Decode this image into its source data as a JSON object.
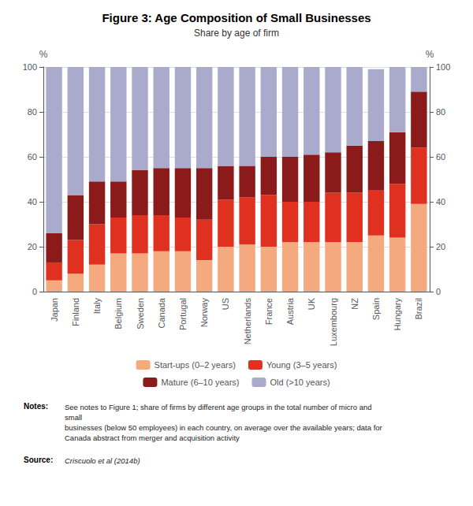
{
  "chart_data": {
    "type": "bar",
    "title": "Figure 3: Age Composition of Small Businesses",
    "subtitle": "Share by age of firm",
    "ylabel": "%",
    "y2label": "%",
    "categories": [
      "Japan",
      "Finland",
      "Italy",
      "Belgium",
      "Sweden",
      "Canada",
      "Portugal",
      "Norway",
      "US",
      "Netherlands",
      "France",
      "Austria",
      "UK",
      "Luxembourg",
      "NZ",
      "Spain",
      "Hungary",
      "Brazil"
    ],
    "series": [
      {
        "name": "Start-ups (0–2 years)",
        "color": "#F4A97F",
        "values": [
          5,
          8,
          12,
          17,
          17,
          18,
          18,
          14,
          20,
          21,
          20,
          22,
          22,
          22,
          22,
          25,
          24,
          39
        ]
      },
      {
        "name": "Young (3–5 years)",
        "color": "#E03020",
        "values": [
          8,
          15,
          18,
          16,
          17,
          16,
          15,
          18,
          21,
          21,
          23,
          18,
          18,
          22,
          22,
          20,
          24,
          25
        ]
      },
      {
        "name": "Mature (6–10 years)",
        "color": "#8B1A1A",
        "values": [
          13,
          20,
          19,
          16,
          20,
          21,
          22,
          23,
          15,
          14,
          17,
          20,
          21,
          18,
          21,
          22,
          23,
          25
        ]
      },
      {
        "name": "Old (>10 years)",
        "color": "#AAAACC",
        "values": [
          74,
          57,
          51,
          51,
          46,
          45,
          45,
          45,
          44,
          44,
          40,
          40,
          39,
          38,
          35,
          32,
          29,
          11
        ]
      }
    ],
    "stacked": true,
    "ylim": [
      0,
      100
    ],
    "yticks": [
      0,
      20,
      40,
      60,
      80,
      100
    ],
    "y2lim": [
      0,
      100
    ],
    "y2ticks": [
      0,
      20,
      40,
      60,
      80,
      100
    ],
    "grid": true,
    "legend": "bottom",
    "annotations": [
      {
        "label": "Notes:",
        "text": "See notes to Figure 1; share of firms by different age groups in the total number of micro and small\nbusinesses (below 50 employees) in each country, on average over the available years; data for\nCanada abstract from merger and acquisition activity"
      },
      {
        "label": "Source:",
        "text": "Criscuolo et al (2014b)"
      }
    ]
  }
}
